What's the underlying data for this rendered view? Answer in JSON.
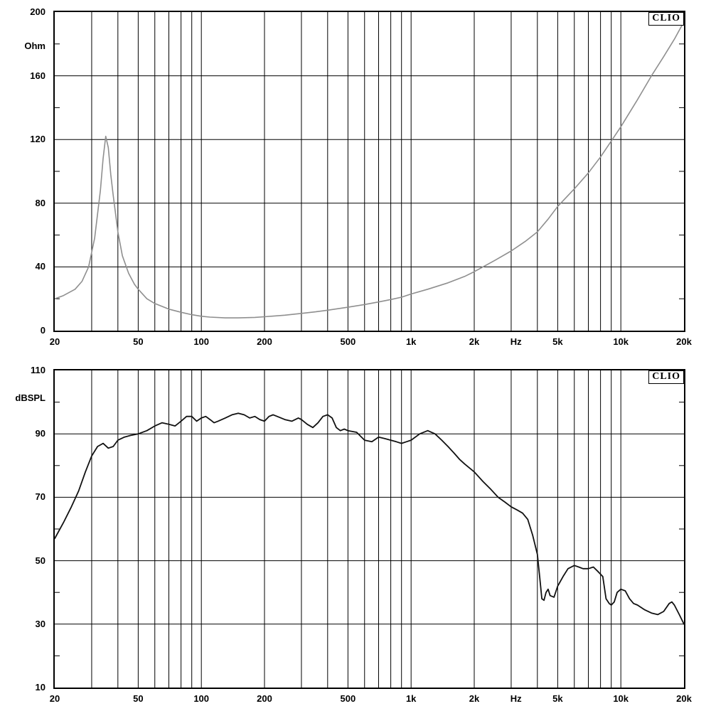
{
  "page": {
    "background": "#ffffff"
  },
  "chart_data": [
    {
      "type": "line",
      "name": "impedance-curve",
      "brand": "CLIO",
      "title": "",
      "ylabel": "Ohm",
      "xlabel": "Hz",
      "x_scale": "log",
      "x_range": [
        20,
        20000
      ],
      "y_range": [
        0,
        200
      ],
      "y_major_ticks": [
        200,
        160,
        120,
        80,
        40,
        0
      ],
      "y_minor_ticks": [
        180,
        140,
        100,
        60,
        20
      ],
      "x_tick_labels": [
        {
          "f": 20,
          "label": "20"
        },
        {
          "f": 50,
          "label": "50"
        },
        {
          "f": 100,
          "label": "100"
        },
        {
          "f": 200,
          "label": "200"
        },
        {
          "f": 500,
          "label": "500"
        },
        {
          "f": 1000,
          "label": "1k"
        },
        {
          "f": 2000,
          "label": "2k"
        },
        {
          "f": 3162,
          "label": "Hz"
        },
        {
          "f": 5000,
          "label": "5k"
        },
        {
          "f": 10000,
          "label": "10k"
        },
        {
          "f": 20000,
          "label": "20k"
        }
      ],
      "grid": true,
      "grid_color": "#000000",
      "line_color": "#8f8f8f",
      "points": [
        [
          20,
          20
        ],
        [
          22,
          22
        ],
        [
          25,
          26
        ],
        [
          27,
          31
        ],
        [
          29,
          40
        ],
        [
          31,
          58
        ],
        [
          33,
          88
        ],
        [
          34,
          108
        ],
        [
          35,
          122
        ],
        [
          36,
          115
        ],
        [
          37,
          98
        ],
        [
          38,
          85
        ],
        [
          40,
          62
        ],
        [
          42,
          47
        ],
        [
          45,
          36
        ],
        [
          48,
          29
        ],
        [
          50,
          26
        ],
        [
          55,
          20
        ],
        [
          60,
          17
        ],
        [
          70,
          13.5
        ],
        [
          80,
          11.5
        ],
        [
          90,
          10
        ],
        [
          100,
          9
        ],
        [
          110,
          8.5
        ],
        [
          130,
          8
        ],
        [
          150,
          8
        ],
        [
          180,
          8.3
        ],
        [
          200,
          8.7
        ],
        [
          250,
          9.7
        ],
        [
          300,
          10.8
        ],
        [
          350,
          11.8
        ],
        [
          400,
          12.8
        ],
        [
          500,
          14.7
        ],
        [
          600,
          16.4
        ],
        [
          700,
          18
        ],
        [
          800,
          19.5
        ],
        [
          900,
          21
        ],
        [
          1000,
          23
        ],
        [
          1200,
          26
        ],
        [
          1500,
          30
        ],
        [
          1800,
          34
        ],
        [
          2000,
          37
        ],
        [
          2500,
          44
        ],
        [
          3000,
          50
        ],
        [
          3500,
          56
        ],
        [
          4000,
          62
        ],
        [
          4500,
          70
        ],
        [
          5000,
          78
        ],
        [
          6000,
          89
        ],
        [
          7000,
          99
        ],
        [
          8000,
          109
        ],
        [
          9000,
          119
        ],
        [
          10000,
          128
        ],
        [
          12000,
          145
        ],
        [
          14000,
          160
        ],
        [
          16000,
          172
        ],
        [
          18000,
          183
        ],
        [
          20000,
          194
        ]
      ]
    },
    {
      "type": "line",
      "name": "frequency-response-curve",
      "brand": "CLIO",
      "title": "",
      "ylabel": "dBSPL",
      "xlabel": "Hz",
      "x_scale": "log",
      "x_range": [
        20,
        20000
      ],
      "y_range": [
        10,
        110
      ],
      "y_major_ticks": [
        110,
        90,
        70,
        50,
        30,
        10
      ],
      "y_minor_ticks": [
        100,
        80,
        60,
        40,
        20
      ],
      "x_tick_labels": [
        {
          "f": 20,
          "label": "20"
        },
        {
          "f": 50,
          "label": "50"
        },
        {
          "f": 100,
          "label": "100"
        },
        {
          "f": 200,
          "label": "200"
        },
        {
          "f": 500,
          "label": "500"
        },
        {
          "f": 1000,
          "label": "1k"
        },
        {
          "f": 2000,
          "label": "2k"
        },
        {
          "f": 3162,
          "label": "Hz"
        },
        {
          "f": 5000,
          "label": "5k"
        },
        {
          "f": 10000,
          "label": "10k"
        },
        {
          "f": 20000,
          "label": "20k"
        }
      ],
      "grid": true,
      "grid_color": "#000000",
      "line_color": "#111111",
      "points": [
        [
          20,
          57
        ],
        [
          22,
          62
        ],
        [
          24,
          67
        ],
        [
          26,
          72
        ],
        [
          28,
          78
        ],
        [
          30,
          83
        ],
        [
          32,
          86
        ],
        [
          34,
          87
        ],
        [
          36,
          85.5
        ],
        [
          38,
          86
        ],
        [
          40,
          88
        ],
        [
          43,
          89
        ],
        [
          46,
          89.5
        ],
        [
          50,
          90
        ],
        [
          55,
          91
        ],
        [
          60,
          92.5
        ],
        [
          65,
          93.5
        ],
        [
          70,
          93
        ],
        [
          75,
          92.5
        ],
        [
          80,
          94
        ],
        [
          85,
          95.5
        ],
        [
          90,
          95.5
        ],
        [
          95,
          94
        ],
        [
          100,
          95
        ],
        [
          105,
          95.5
        ],
        [
          110,
          94.5
        ],
        [
          115,
          93.5
        ],
        [
          120,
          94
        ],
        [
          130,
          95
        ],
        [
          140,
          96
        ],
        [
          150,
          96.5
        ],
        [
          160,
          96
        ],
        [
          170,
          95
        ],
        [
          180,
          95.5
        ],
        [
          190,
          94.5
        ],
        [
          200,
          94
        ],
        [
          210,
          95.5
        ],
        [
          220,
          96
        ],
        [
          230,
          95.5
        ],
        [
          250,
          94.5
        ],
        [
          270,
          94
        ],
        [
          290,
          95
        ],
        [
          300,
          94.5
        ],
        [
          320,
          93
        ],
        [
          340,
          92
        ],
        [
          360,
          93.5
        ],
        [
          380,
          95.5
        ],
        [
          400,
          96
        ],
        [
          420,
          95
        ],
        [
          440,
          92
        ],
        [
          460,
          91
        ],
        [
          480,
          91.5
        ],
        [
          500,
          91
        ],
        [
          550,
          90.5
        ],
        [
          600,
          88
        ],
        [
          650,
          87.5
        ],
        [
          700,
          89
        ],
        [
          750,
          88.5
        ],
        [
          800,
          88
        ],
        [
          850,
          87.5
        ],
        [
          900,
          87
        ],
        [
          950,
          87.5
        ],
        [
          1000,
          88
        ],
        [
          1100,
          90
        ],
        [
          1200,
          91
        ],
        [
          1300,
          90
        ],
        [
          1400,
          88
        ],
        [
          1500,
          86
        ],
        [
          1600,
          84
        ],
        [
          1700,
          82
        ],
        [
          1800,
          80.5
        ],
        [
          2000,
          78
        ],
        [
          2200,
          75
        ],
        [
          2400,
          72.5
        ],
        [
          2600,
          70
        ],
        [
          2800,
          68.5
        ],
        [
          3000,
          67
        ],
        [
          3200,
          66
        ],
        [
          3400,
          65
        ],
        [
          3600,
          63
        ],
        [
          3800,
          58
        ],
        [
          4000,
          52
        ],
        [
          4100,
          45
        ],
        [
          4200,
          38
        ],
        [
          4300,
          37.5
        ],
        [
          4400,
          40
        ],
        [
          4500,
          41
        ],
        [
          4600,
          39
        ],
        [
          4800,
          38.5
        ],
        [
          5000,
          42
        ],
        [
          5300,
          45
        ],
        [
          5600,
          47.5
        ],
        [
          6000,
          48.5
        ],
        [
          6300,
          48
        ],
        [
          6600,
          47.5
        ],
        [
          7000,
          47.5
        ],
        [
          7400,
          48
        ],
        [
          7800,
          46.5
        ],
        [
          8200,
          45
        ],
        [
          8500,
          38
        ],
        [
          8800,
          36.5
        ],
        [
          9000,
          36
        ],
        [
          9300,
          37
        ],
        [
          9600,
          40
        ],
        [
          10000,
          41
        ],
        [
          10500,
          40.5
        ],
        [
          11000,
          38
        ],
        [
          11500,
          36.5
        ],
        [
          12000,
          36
        ],
        [
          13000,
          34.5
        ],
        [
          14000,
          33.5
        ],
        [
          15000,
          33
        ],
        [
          16000,
          34
        ],
        [
          17000,
          36.5
        ],
        [
          17500,
          37
        ],
        [
          18000,
          36
        ],
        [
          19000,
          33
        ],
        [
          20000,
          30
        ]
      ]
    }
  ]
}
